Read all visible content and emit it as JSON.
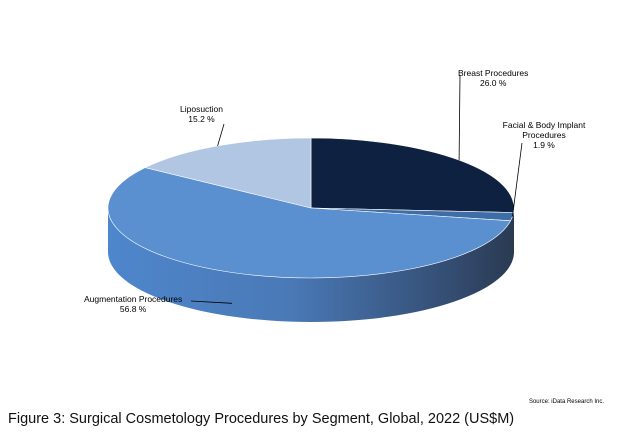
{
  "chart_data": {
    "type": "pie",
    "title": "",
    "slices": [
      {
        "label": "Breast Procedures",
        "value": 26.0,
        "display": "26.0 %",
        "color": "#0e2140"
      },
      {
        "label": "Facial & Body Implant Procedures",
        "value": 1.9,
        "display": "1.9 %",
        "color": "#3f6ea6"
      },
      {
        "label": "Augmentation Procedures",
        "value": 56.8,
        "display": "56.8 %",
        "color": "#5a8fd0"
      },
      {
        "label": "Liposuction",
        "value": 15.2,
        "display": "15.2 %",
        "color": "#b0c6e3"
      }
    ],
    "legend": "none",
    "style": "3d-pie"
  },
  "figure": {
    "caption": "Figure 3: Surgical Cosmetology Procedures by Segment, Global, 2022 (US$M)",
    "source": "Source: iData Research Inc."
  }
}
